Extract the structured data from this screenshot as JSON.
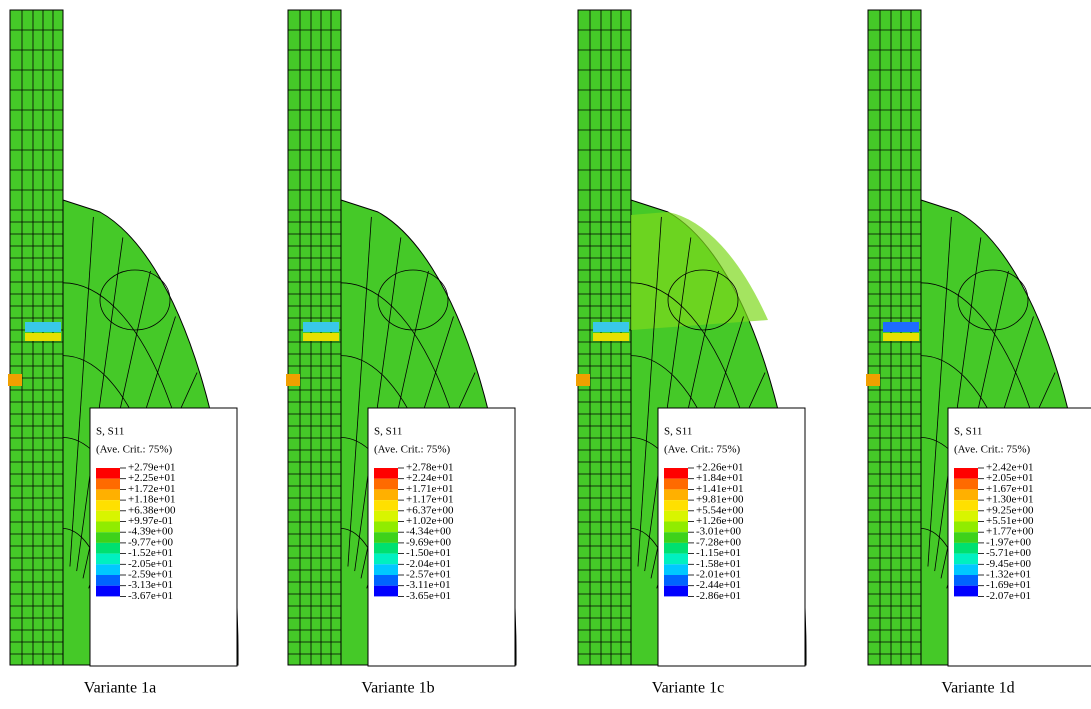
{
  "panels": [
    {
      "legend_title": "S, S11",
      "legend_subtitle": "(Ave. Crit.: 75%)",
      "legend_labels": [
        "+2.79e+01",
        "+2.25e+01",
        "+1.72e+01",
        "+1.18e+01",
        "+6.38e+00",
        "+9.97e-01",
        "-4.39e+00",
        "-9.77e+00",
        "-1.52e+01",
        "-2.05e+01",
        "-2.59e+01",
        "-3.13e+01",
        "-3.67e+01"
      ],
      "caption": "Variante 1a"
    },
    {
      "legend_title": "S, S11",
      "legend_subtitle": "(Ave. Crit.: 75%)",
      "legend_labels": [
        "+2.78e+01",
        "+2.24e+01",
        "+1.71e+01",
        "+1.17e+01",
        "+6.37e+00",
        "+1.02e+00",
        "-4.34e+00",
        "-9.69e+00",
        "-1.50e+01",
        "-2.04e+01",
        "-2.57e+01",
        "-3.11e+01",
        "-3.65e+01"
      ],
      "caption": "Variante 1b"
    },
    {
      "legend_title": "S, S11",
      "legend_subtitle": "(Ave. Crit.: 75%)",
      "legend_labels": [
        "+2.26e+01",
        "+1.84e+01",
        "+1.41e+01",
        "+9.81e+00",
        "+5.54e+00",
        "+1.26e+00",
        "-3.01e+00",
        "-7.28e+00",
        "-1.15e+01",
        "-1.58e+01",
        "-2.01e+01",
        "-2.44e+01",
        "-2.86e+01"
      ],
      "caption": "Variante 1c"
    },
    {
      "legend_title": "S, S11",
      "legend_subtitle": "(Ave. Crit.: 75%)",
      "legend_labels": [
        "+2.42e+01",
        "+2.05e+01",
        "+1.67e+01",
        "+1.30e+01",
        "+9.25e+00",
        "+5.51e+00",
        "+1.77e+00",
        "-1.97e+00",
        "-5.71e+00",
        "-9.45e+00",
        "-1.32e+01",
        "-1.69e+01",
        "-2.07e+01"
      ],
      "caption": "Variante 1d"
    }
  ]
}
